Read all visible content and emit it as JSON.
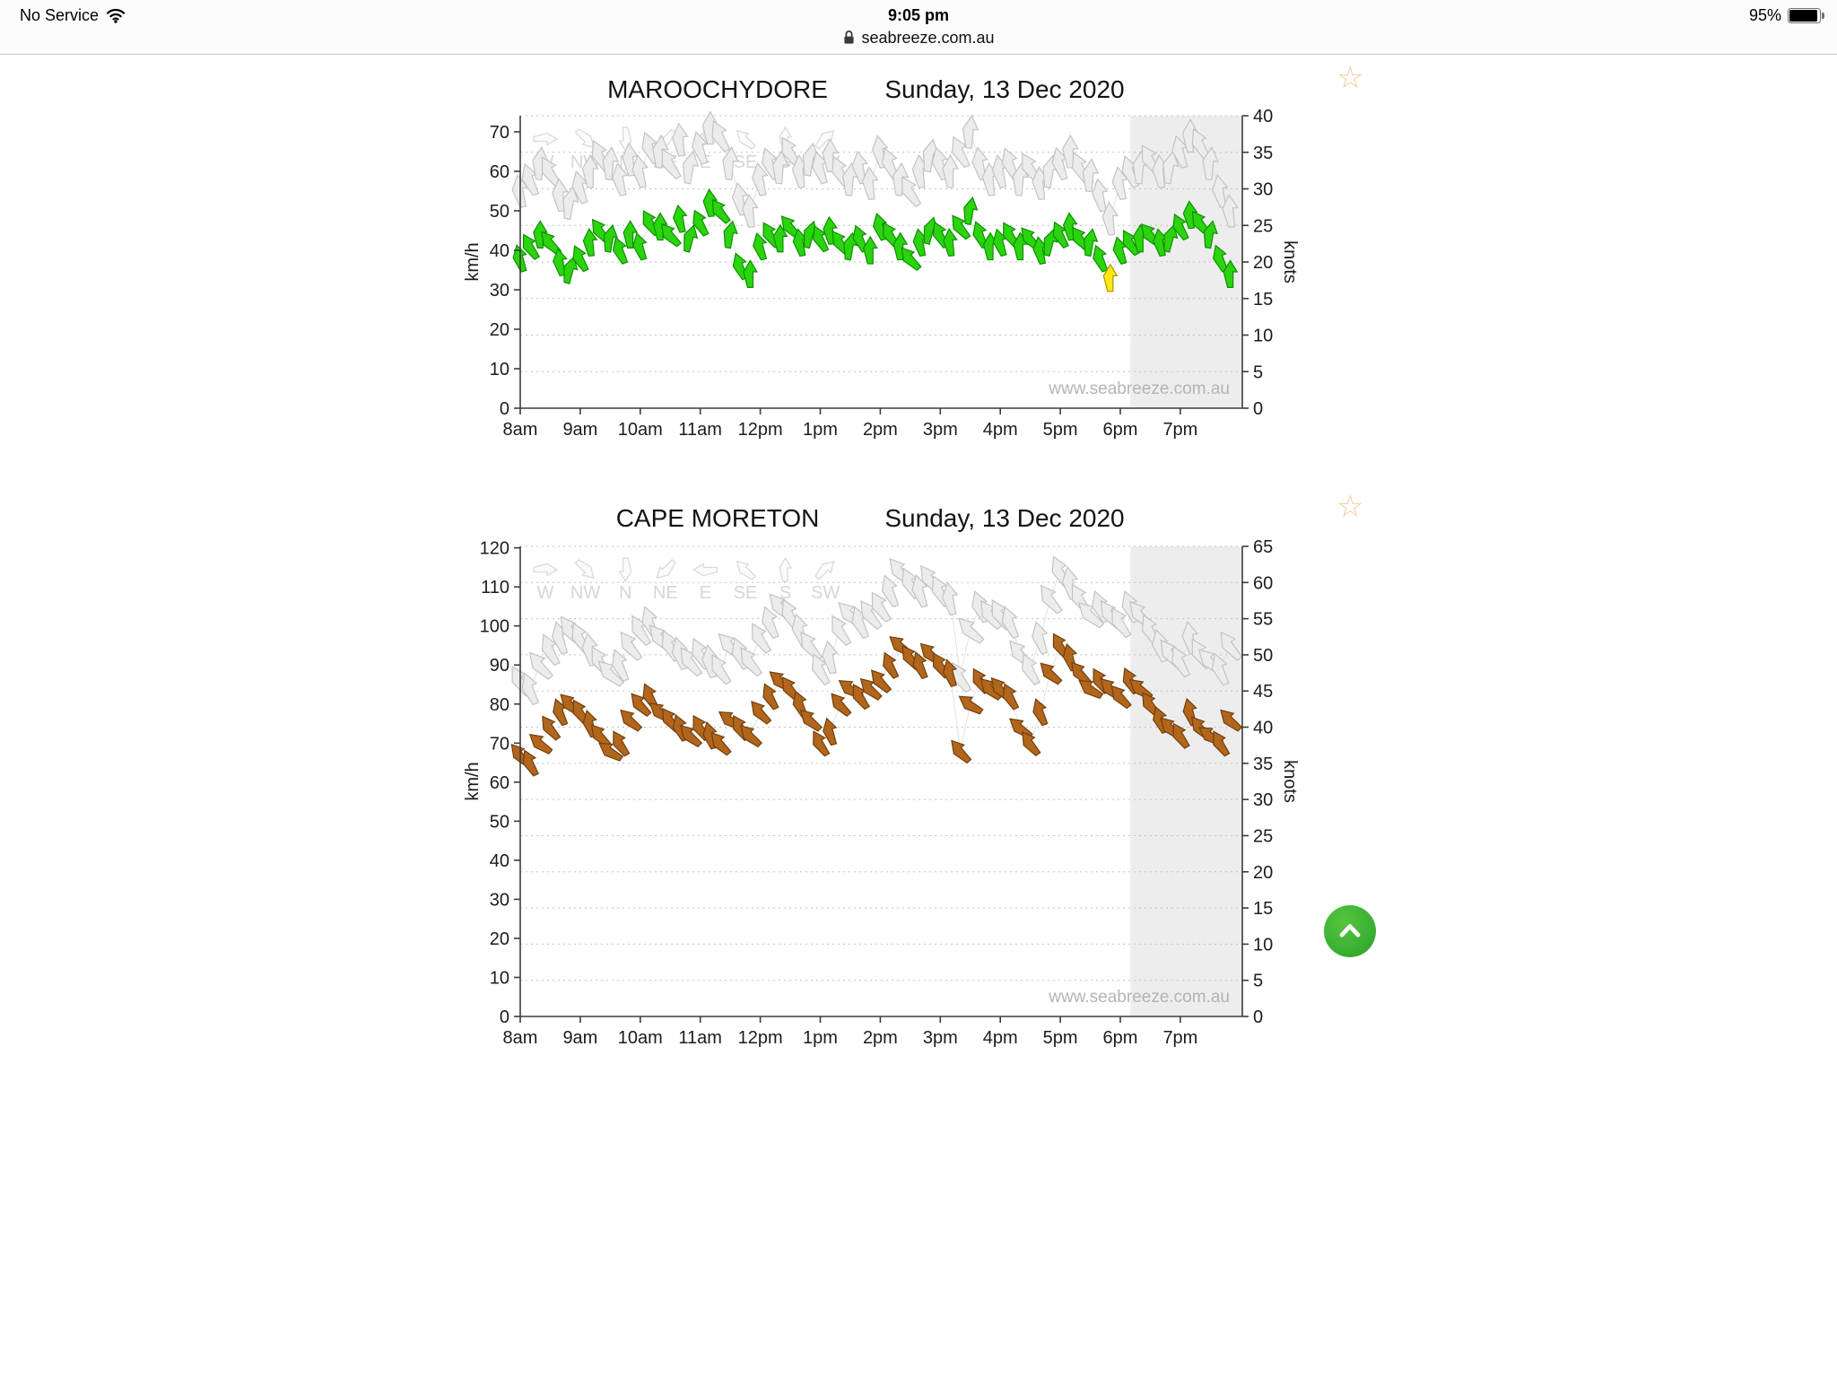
{
  "status_bar": {
    "carrier": "No Service",
    "time": "9:05 pm",
    "battery_percent": "95%"
  },
  "url_bar": {
    "domain": "seabreeze.com.au"
  },
  "colors": {
    "gust_fill": "#ececec",
    "gust_stroke": "#c3c3c3",
    "connector_line": "#e2e2e2",
    "grid_line": "#c2c2c2",
    "axis": "#3c3c3c",
    "shade": "#e9e9e9",
    "scroll_button_green": "#35b32f",
    "star_outline": "#f2c79b"
  },
  "compass_legend": {
    "labels": [
      "W",
      "NW",
      "N",
      "NE",
      "E",
      "SE",
      "S",
      "SW"
    ],
    "bearings": [
      90,
      135,
      180,
      225,
      270,
      315,
      0,
      45
    ]
  },
  "scroll_top_button": {
    "icon": "chevron-up"
  },
  "chart_data": [
    {
      "type": "wind-arrows",
      "station": "MAROOCHYDORE",
      "date": "Sunday, 13 Dec 2020",
      "watermark": "www.seabreeze.com.au",
      "units": "km/h",
      "left_axis": {
        "label": "km/h",
        "ticks": [
          0,
          10,
          20,
          30,
          40,
          50,
          60,
          70
        ]
      },
      "right_axis": {
        "label": "knots",
        "ticks": [
          0,
          5,
          10,
          15,
          20,
          25,
          30,
          35,
          40
        ],
        "max_knots": 40
      },
      "x_axis": {
        "labels": [
          "8am",
          "9am",
          "10am",
          "11am",
          "12pm",
          "1pm",
          "2pm",
          "3pm",
          "4pm",
          "5pm",
          "6pm",
          "7pm"
        ],
        "interval_min": 10
      },
      "shade_start_frac": 0.845,
      "wind": {
        "fill": "#2bd40e",
        "stroke": "#0d8f00",
        "speeds": [
          38,
          41,
          44,
          42,
          37,
          35,
          38,
          42,
          45,
          43,
          40,
          44,
          41,
          47,
          46,
          44,
          48,
          43,
          47,
          52,
          50,
          44,
          36,
          34,
          41,
          44,
          43,
          46,
          42,
          44,
          43,
          45,
          42,
          41,
          43,
          40,
          46,
          44,
          41,
          38,
          42,
          45,
          44,
          42,
          46,
          50,
          44,
          41,
          42,
          44,
          41,
          43,
          40,
          42,
          44,
          46,
          43,
          42,
          38,
          33,
          40,
          42,
          43,
          44,
          42,
          43,
          46,
          49,
          47,
          44,
          38,
          34
        ],
        "directions": [
          345,
          330,
          0,
          320,
          350,
          15,
          335,
          355,
          325,
          10,
          340,
          0,
          345,
          330,
          0,
          320,
          350,
          15,
          335,
          355,
          325,
          10,
          340,
          0,
          345,
          330,
          0,
          320,
          350,
          15,
          335,
          355,
          325,
          10,
          340,
          0,
          345,
          330,
          0,
          320,
          350,
          15,
          335,
          355,
          325,
          10,
          340,
          0,
          345,
          330,
          0,
          320,
          350,
          15,
          335,
          355,
          325,
          10,
          340,
          0,
          345,
          330,
          0,
          320,
          350,
          15,
          335,
          355,
          325,
          10,
          340,
          0
        ],
        "special_points": [
          {
            "index": 59,
            "fill": "#ffe813",
            "stroke": "#a99400"
          }
        ]
      },
      "gusts": {
        "speeds": [
          55,
          58,
          62,
          60,
          54,
          52,
          56,
          60,
          64,
          62,
          58,
          63,
          60,
          66,
          65,
          62,
          68,
          61,
          66,
          71,
          69,
          62,
          53,
          50,
          58,
          62,
          61,
          65,
          60,
          63,
          61,
          64,
          60,
          58,
          61,
          57,
          65,
          62,
          58,
          55,
          60,
          64,
          62,
          60,
          65,
          70,
          62,
          58,
          60,
          62,
          58,
          61,
          57,
          60,
          62,
          65,
          61,
          59,
          54,
          48,
          57,
          60,
          61,
          63,
          60,
          61,
          65,
          69,
          67,
          62,
          55,
          50
        ],
        "directions": [
          350,
          340,
          5,
          330,
          355,
          10,
          345,
          0,
          335,
          5,
          350,
          355,
          350,
          340,
          5,
          330,
          355,
          10,
          345,
          0,
          335,
          5,
          350,
          355,
          350,
          340,
          5,
          330,
          355,
          10,
          345,
          0,
          335,
          5,
          350,
          355,
          350,
          340,
          5,
          330,
          355,
          10,
          345,
          0,
          335,
          5,
          350,
          355,
          350,
          340,
          5,
          330,
          355,
          10,
          345,
          0,
          335,
          5,
          350,
          355,
          350,
          340,
          5,
          330,
          355,
          10,
          345,
          0,
          335,
          5,
          350,
          355
        ]
      }
    },
    {
      "type": "wind-arrows",
      "station": "CAPE MORETON",
      "date": "Sunday, 13 Dec 2020",
      "watermark": "www.seabreeze.com.au",
      "units": "km/h",
      "left_axis": {
        "label": "km/h",
        "ticks": [
          0,
          10,
          20,
          30,
          40,
          50,
          60,
          70,
          80,
          90,
          100,
          110,
          120
        ]
      },
      "right_axis": {
        "label": "knots",
        "ticks": [
          0,
          5,
          10,
          15,
          20,
          25,
          30,
          35,
          40,
          45,
          50,
          55,
          60,
          65
        ],
        "max_knots": 65
      },
      "x_axis": {
        "labels": [
          "8am",
          "9am",
          "10am",
          "11am",
          "12pm",
          "1pm",
          "2pm",
          "3pm",
          "4pm",
          "5pm",
          "6pm",
          "7pm"
        ],
        "interval_min": 10
      },
      "shade_start_frac": 0.845,
      "wind": {
        "fill": "#b2661c",
        "stroke": "#713f0d",
        "speeds": [
          67,
          65,
          70,
          74,
          78,
          80,
          78,
          75,
          72,
          68,
          70,
          76,
          80,
          82,
          78,
          76,
          74,
          72,
          74,
          72,
          70,
          76,
          74,
          72,
          78,
          82,
          86,
          84,
          80,
          76,
          70,
          73,
          80,
          84,
          82,
          84,
          86,
          90,
          95,
          92,
          90,
          93,
          90,
          88,
          68,
          80,
          86,
          84,
          84,
          82,
          74,
          70,
          78,
          88,
          95,
          92,
          88,
          84,
          86,
          84,
          82,
          86,
          84,
          80,
          76,
          74,
          72,
          78,
          74,
          72,
          70,
          76
        ],
        "directions": [
          320,
          335,
          310,
          325,
          340,
          315,
          330,
          345,
          320,
          305,
          330,
          315,
          320,
          335,
          310,
          325,
          340,
          315,
          330,
          345,
          320,
          305,
          330,
          315,
          320,
          335,
          310,
          325,
          340,
          315,
          330,
          345,
          320,
          305,
          330,
          315,
          320,
          335,
          310,
          325,
          340,
          315,
          330,
          345,
          320,
          305,
          330,
          315,
          320,
          335,
          310,
          325,
          340,
          315,
          330,
          345,
          320,
          305,
          330,
          315,
          320,
          335,
          310,
          325,
          340,
          315,
          330,
          345,
          320,
          305,
          330,
          315
        ],
        "special_points": []
      },
      "gusts": {
        "speeds": [
          86,
          84,
          90,
          94,
          97,
          99,
          97,
          94,
          91,
          88,
          90,
          95,
          99,
          101,
          97,
          95,
          93,
          91,
          93,
          91,
          89,
          95,
          93,
          91,
          97,
          101,
          105,
          103,
          99,
          95,
          89,
          92,
          99,
          103,
          101,
          103,
          105,
          109,
          114,
          111,
          109,
          112,
          109,
          107,
          87,
          99,
          105,
          103,
          103,
          101,
          93,
          89,
          97,
          107,
          114,
          111,
          107,
          103,
          105,
          103,
          101,
          105,
          103,
          99,
          95,
          93,
          91,
          97,
          93,
          91,
          89,
          95
        ],
        "directions": [
          330,
          340,
          320,
          335,
          345,
          325,
          335,
          350,
          330,
          315,
          340,
          325,
          330,
          340,
          320,
          335,
          345,
          325,
          335,
          350,
          330,
          315,
          340,
          325,
          330,
          340,
          320,
          335,
          345,
          325,
          335,
          350,
          330,
          315,
          340,
          325,
          330,
          340,
          320,
          335,
          345,
          325,
          335,
          350,
          330,
          315,
          340,
          325,
          330,
          340,
          320,
          335,
          345,
          325,
          335,
          350,
          330,
          315,
          340,
          325,
          330,
          340,
          320,
          335,
          345,
          325,
          335,
          350,
          330,
          315,
          340,
          325
        ]
      }
    }
  ]
}
